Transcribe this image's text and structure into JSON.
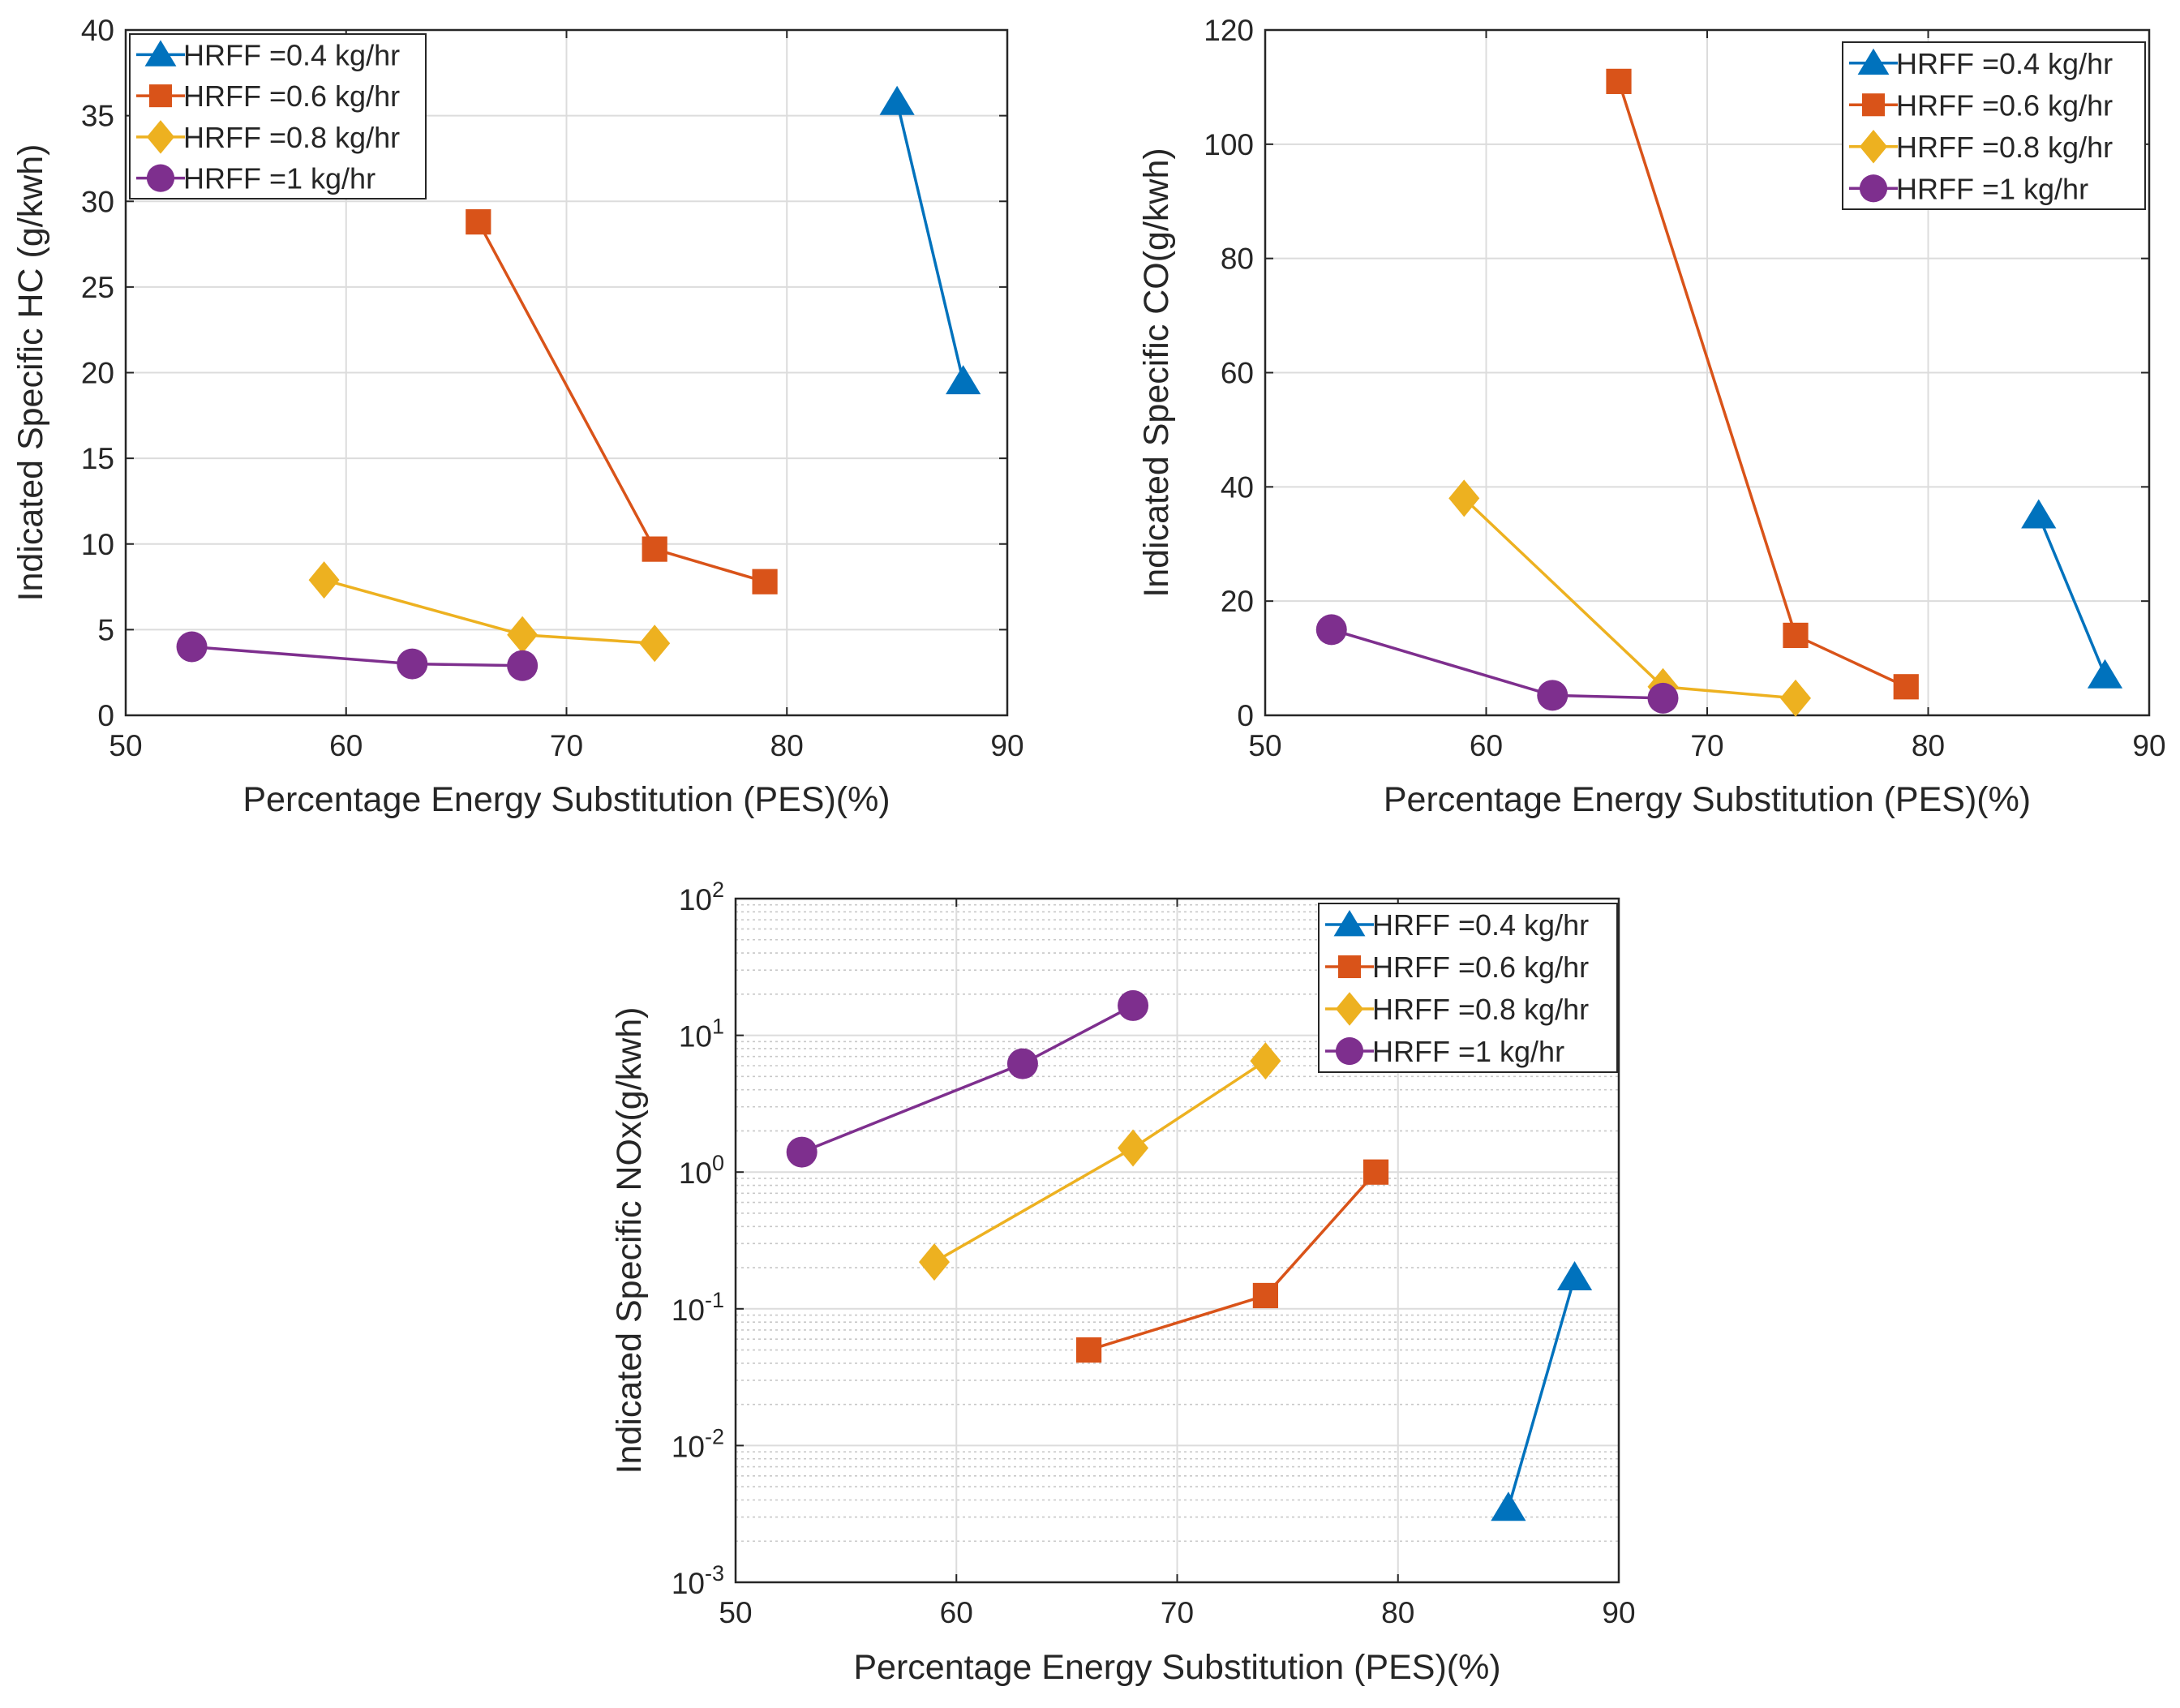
{
  "chart_data": [
    {
      "type": "line",
      "id": "hc",
      "xlabel": "Percentage Energy Substitution (PES)(%)",
      "ylabel": "Indicated Specific HC (g/kwh)",
      "xscale": "linear",
      "yscale": "linear",
      "xlim": [
        50,
        90
      ],
      "ylim": [
        0,
        40
      ],
      "xticks": [
        50,
        60,
        70,
        80,
        90
      ],
      "yticks": [
        0,
        5,
        10,
        15,
        20,
        25,
        30,
        35,
        40
      ],
      "grid": true,
      "legend_position": "top-left",
      "series": [
        {
          "name": "HRFF =0.4 kg/hr",
          "color": "#0072BD",
          "marker": "triangle",
          "x": [
            85,
            88
          ],
          "y": [
            35.8,
            19.5
          ]
        },
        {
          "name": "HRFF =0.6 kg/hr",
          "color": "#D95319",
          "marker": "square",
          "x": [
            66,
            74,
            79
          ],
          "y": [
            28.8,
            9.7,
            7.8
          ]
        },
        {
          "name": "HRFF =0.8 kg/hr",
          "color": "#EDB120",
          "marker": "diamond",
          "x": [
            59,
            68,
            74
          ],
          "y": [
            7.9,
            4.7,
            4.2
          ]
        },
        {
          "name": "HRFF =1 kg/hr",
          "color": "#7E2F8E",
          "marker": "circle",
          "x": [
            53,
            63,
            68
          ],
          "y": [
            4.0,
            3.0,
            2.9
          ]
        }
      ]
    },
    {
      "type": "line",
      "id": "co",
      "xlabel": "Percentage Energy Substitution (PES)(%)",
      "ylabel": "Indicated Specific CO(g/kwh)",
      "xscale": "linear",
      "yscale": "linear",
      "xlim": [
        50,
        90
      ],
      "ylim": [
        0,
        120
      ],
      "xticks": [
        50,
        60,
        70,
        80,
        90
      ],
      "yticks": [
        0,
        20,
        40,
        60,
        80,
        100,
        120
      ],
      "grid": true,
      "legend_position": "top-right",
      "series": [
        {
          "name": "HRFF =0.4 kg/hr",
          "color": "#0072BD",
          "marker": "triangle",
          "x": [
            85,
            88
          ],
          "y": [
            35,
            7
          ]
        },
        {
          "name": "HRFF =0.6 kg/hr",
          "color": "#D95319",
          "marker": "square",
          "x": [
            66,
            74,
            79
          ],
          "y": [
            111,
            14,
            5
          ]
        },
        {
          "name": "HRFF =0.8 kg/hr",
          "color": "#EDB120",
          "marker": "diamond",
          "x": [
            59,
            68,
            74
          ],
          "y": [
            38,
            5,
            3
          ]
        },
        {
          "name": "HRFF =1 kg/hr",
          "color": "#7E2F8E",
          "marker": "circle",
          "x": [
            53,
            63,
            68
          ],
          "y": [
            15,
            3.5,
            3
          ]
        }
      ]
    },
    {
      "type": "line",
      "id": "nox",
      "xlabel": "Percentage Energy Substitution (PES)(%)",
      "ylabel": "Indicated Specific NOx(g/kwh)",
      "xscale": "linear",
      "yscale": "log",
      "xlim": [
        50,
        90
      ],
      "ylim": [
        0.001,
        100
      ],
      "xticks": [
        50,
        60,
        70,
        80,
        90
      ],
      "ytick_bases": [
        "10",
        "10",
        "10",
        "10",
        "10",
        "10"
      ],
      "ytick_exponents": [
        "-3",
        "-2",
        "-1",
        "0",
        "1",
        "2"
      ],
      "grid": true,
      "minor_grid": true,
      "legend_position": "top-right",
      "series": [
        {
          "name": "HRFF =0.4 kg/hr",
          "color": "#0072BD",
          "marker": "triangle",
          "x": [
            85,
            88
          ],
          "y": [
            0.0035,
            0.17
          ]
        },
        {
          "name": "HRFF =0.6 kg/hr",
          "color": "#D95319",
          "marker": "square",
          "x": [
            66,
            74,
            79
          ],
          "y": [
            0.05,
            0.125,
            1.0
          ]
        },
        {
          "name": "HRFF =0.8 kg/hr",
          "color": "#EDB120",
          "marker": "diamond",
          "x": [
            59,
            68,
            74
          ],
          "y": [
            0.22,
            1.5,
            6.5
          ]
        },
        {
          "name": "HRFF =1 kg/hr",
          "color": "#7E2F8E",
          "marker": "circle",
          "x": [
            53,
            63,
            68
          ],
          "y": [
            1.4,
            6.2,
            16.5
          ]
        }
      ]
    }
  ]
}
